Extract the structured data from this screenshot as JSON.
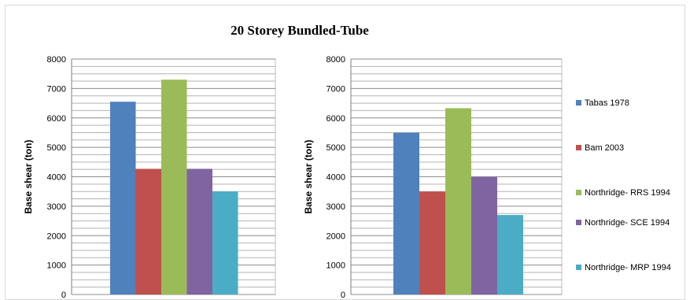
{
  "figure": {
    "title": "20 Storey Bundled-Tube"
  },
  "chart_data": [
    {
      "type": "bar",
      "categories": [
        ""
      ],
      "series": [
        {
          "name": "Tabas 1978",
          "values": [
            6550
          ],
          "color": "#4f81bd"
        },
        {
          "name": "Bam 2003",
          "values": [
            4270
          ],
          "color": "#c0504d"
        },
        {
          "name": "Northridge- RRS 1994",
          "values": [
            7300
          ],
          "color": "#9bbb59"
        },
        {
          "name": "Northridge- SCE 1994",
          "values": [
            4270
          ],
          "color": "#8064a2"
        },
        {
          "name": "Northridge- MRP 1994",
          "values": [
            3500
          ],
          "color": "#4bacc6"
        }
      ],
      "title": "20 Storey Bundled-Tube",
      "xlabel": "",
      "ylabel": "Base shear  (ton)",
      "ylim": [
        0,
        8000
      ],
      "yticks": [
        0,
        1000,
        2000,
        3000,
        4000,
        5000,
        6000,
        7000,
        8000
      ],
      "grid": true
    },
    {
      "type": "bar",
      "categories": [
        ""
      ],
      "series": [
        {
          "name": "Tabas 1978",
          "values": [
            5500
          ],
          "color": "#4f81bd"
        },
        {
          "name": "Bam 2003",
          "values": [
            3500
          ],
          "color": "#c0504d"
        },
        {
          "name": "Northridge- RRS 1994",
          "values": [
            6330
          ],
          "color": "#9bbb59"
        },
        {
          "name": "Northridge- SCE 1994",
          "values": [
            4000
          ],
          "color": "#8064a2"
        },
        {
          "name": "Northridge- MRP 1994",
          "values": [
            2700
          ],
          "color": "#4bacc6"
        }
      ],
      "xlabel": "",
      "ylabel": "Base shear  (ton)",
      "ylim": [
        0,
        8000
      ],
      "yticks": [
        0,
        1000,
        2000,
        3000,
        4000,
        5000,
        6000,
        7000,
        8000
      ],
      "grid": true,
      "legend": "right"
    }
  ]
}
